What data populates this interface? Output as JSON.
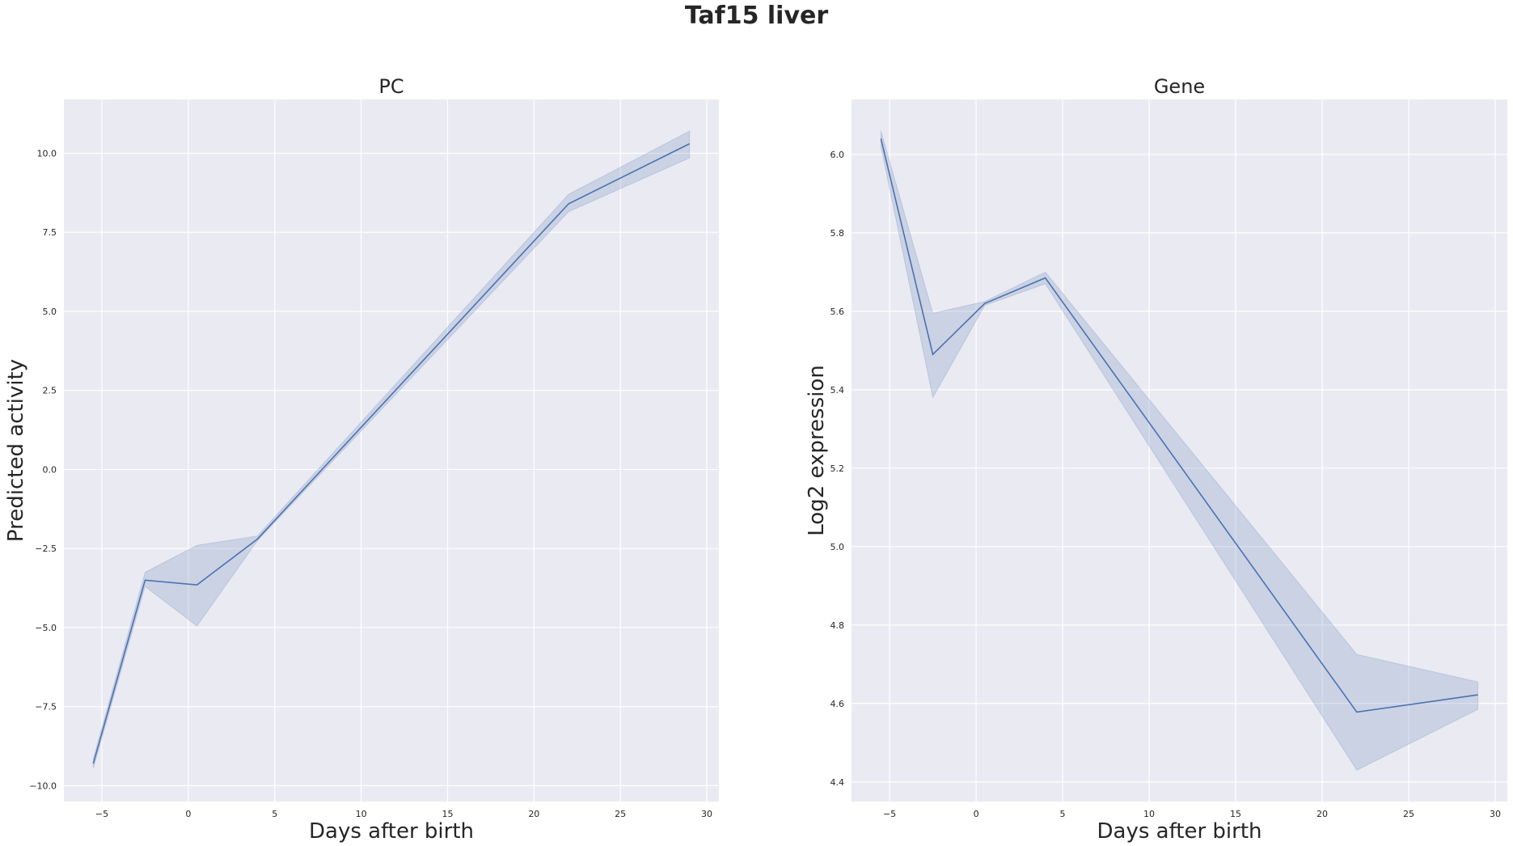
{
  "figure": {
    "title": "Taf15 liver"
  },
  "chart_data": [
    {
      "type": "line",
      "title": "PC",
      "xlabel": "Days after birth",
      "ylabel": "Predicted activity",
      "x": [
        -5.5,
        -2.5,
        0.5,
        4,
        22,
        29
      ],
      "series": [
        {
          "values": [
            -9.3,
            -3.5,
            -3.65,
            -2.2,
            8.4,
            10.3
          ],
          "ci_low": [
            -9.45,
            -3.7,
            -4.95,
            -2.25,
            8.15,
            9.85
          ],
          "ci_high": [
            -9.15,
            -3.25,
            -2.4,
            -2.1,
            8.7,
            10.7
          ]
        }
      ],
      "xlim": [
        -7.2,
        30.7
      ],
      "ylim": [
        -10.5,
        11.7
      ],
      "xticks": [
        -5,
        0,
        5,
        10,
        15,
        20,
        25,
        30
      ],
      "yticks": [
        -10.0,
        -7.5,
        -5.0,
        -2.5,
        0.0,
        2.5,
        5.0,
        7.5,
        10.0
      ],
      "ytick_labels": [
        "−10.0",
        "−7.5",
        "−5.0",
        "−2.5",
        "0.0",
        "2.5",
        "5.0",
        "7.5",
        "10.0"
      ],
      "xtick_labels": [
        "−5",
        "0",
        "5",
        "10",
        "15",
        "20",
        "25",
        "30"
      ],
      "grid": true,
      "colors": {
        "line": "#4c72b0",
        "band": "#4c72b0",
        "background": "#eaeaf2",
        "grid": "#ffffff"
      }
    },
    {
      "type": "line",
      "title": "Gene",
      "xlabel": "Days after birth",
      "ylabel": "Log2 expression",
      "x": [
        -5.5,
        -2.5,
        0.5,
        4,
        22,
        29
      ],
      "series": [
        {
          "values": [
            6.04,
            5.49,
            5.62,
            5.685,
            4.578,
            4.622
          ],
          "ci_low": [
            6.02,
            5.38,
            5.615,
            5.67,
            4.43,
            4.585
          ],
          "ci_high": [
            6.06,
            5.595,
            5.625,
            5.7,
            4.725,
            4.655
          ]
        }
      ],
      "xlim": [
        -7.2,
        30.7
      ],
      "ylim": [
        4.35,
        6.14
      ],
      "xticks": [
        -5,
        0,
        5,
        10,
        15,
        20,
        25,
        30
      ],
      "yticks": [
        4.4,
        4.6,
        4.8,
        5.0,
        5.2,
        5.4,
        5.6,
        5.8,
        6.0
      ],
      "ytick_labels": [
        "4.4",
        "4.6",
        "4.8",
        "5.0",
        "5.2",
        "5.4",
        "5.6",
        "5.8",
        "6.0"
      ],
      "xtick_labels": [
        "−5",
        "0",
        "5",
        "10",
        "15",
        "20",
        "25",
        "30"
      ],
      "grid": true,
      "colors": {
        "line": "#4c72b0",
        "band": "#4c72b0",
        "background": "#eaeaf2",
        "grid": "#ffffff"
      }
    }
  ]
}
